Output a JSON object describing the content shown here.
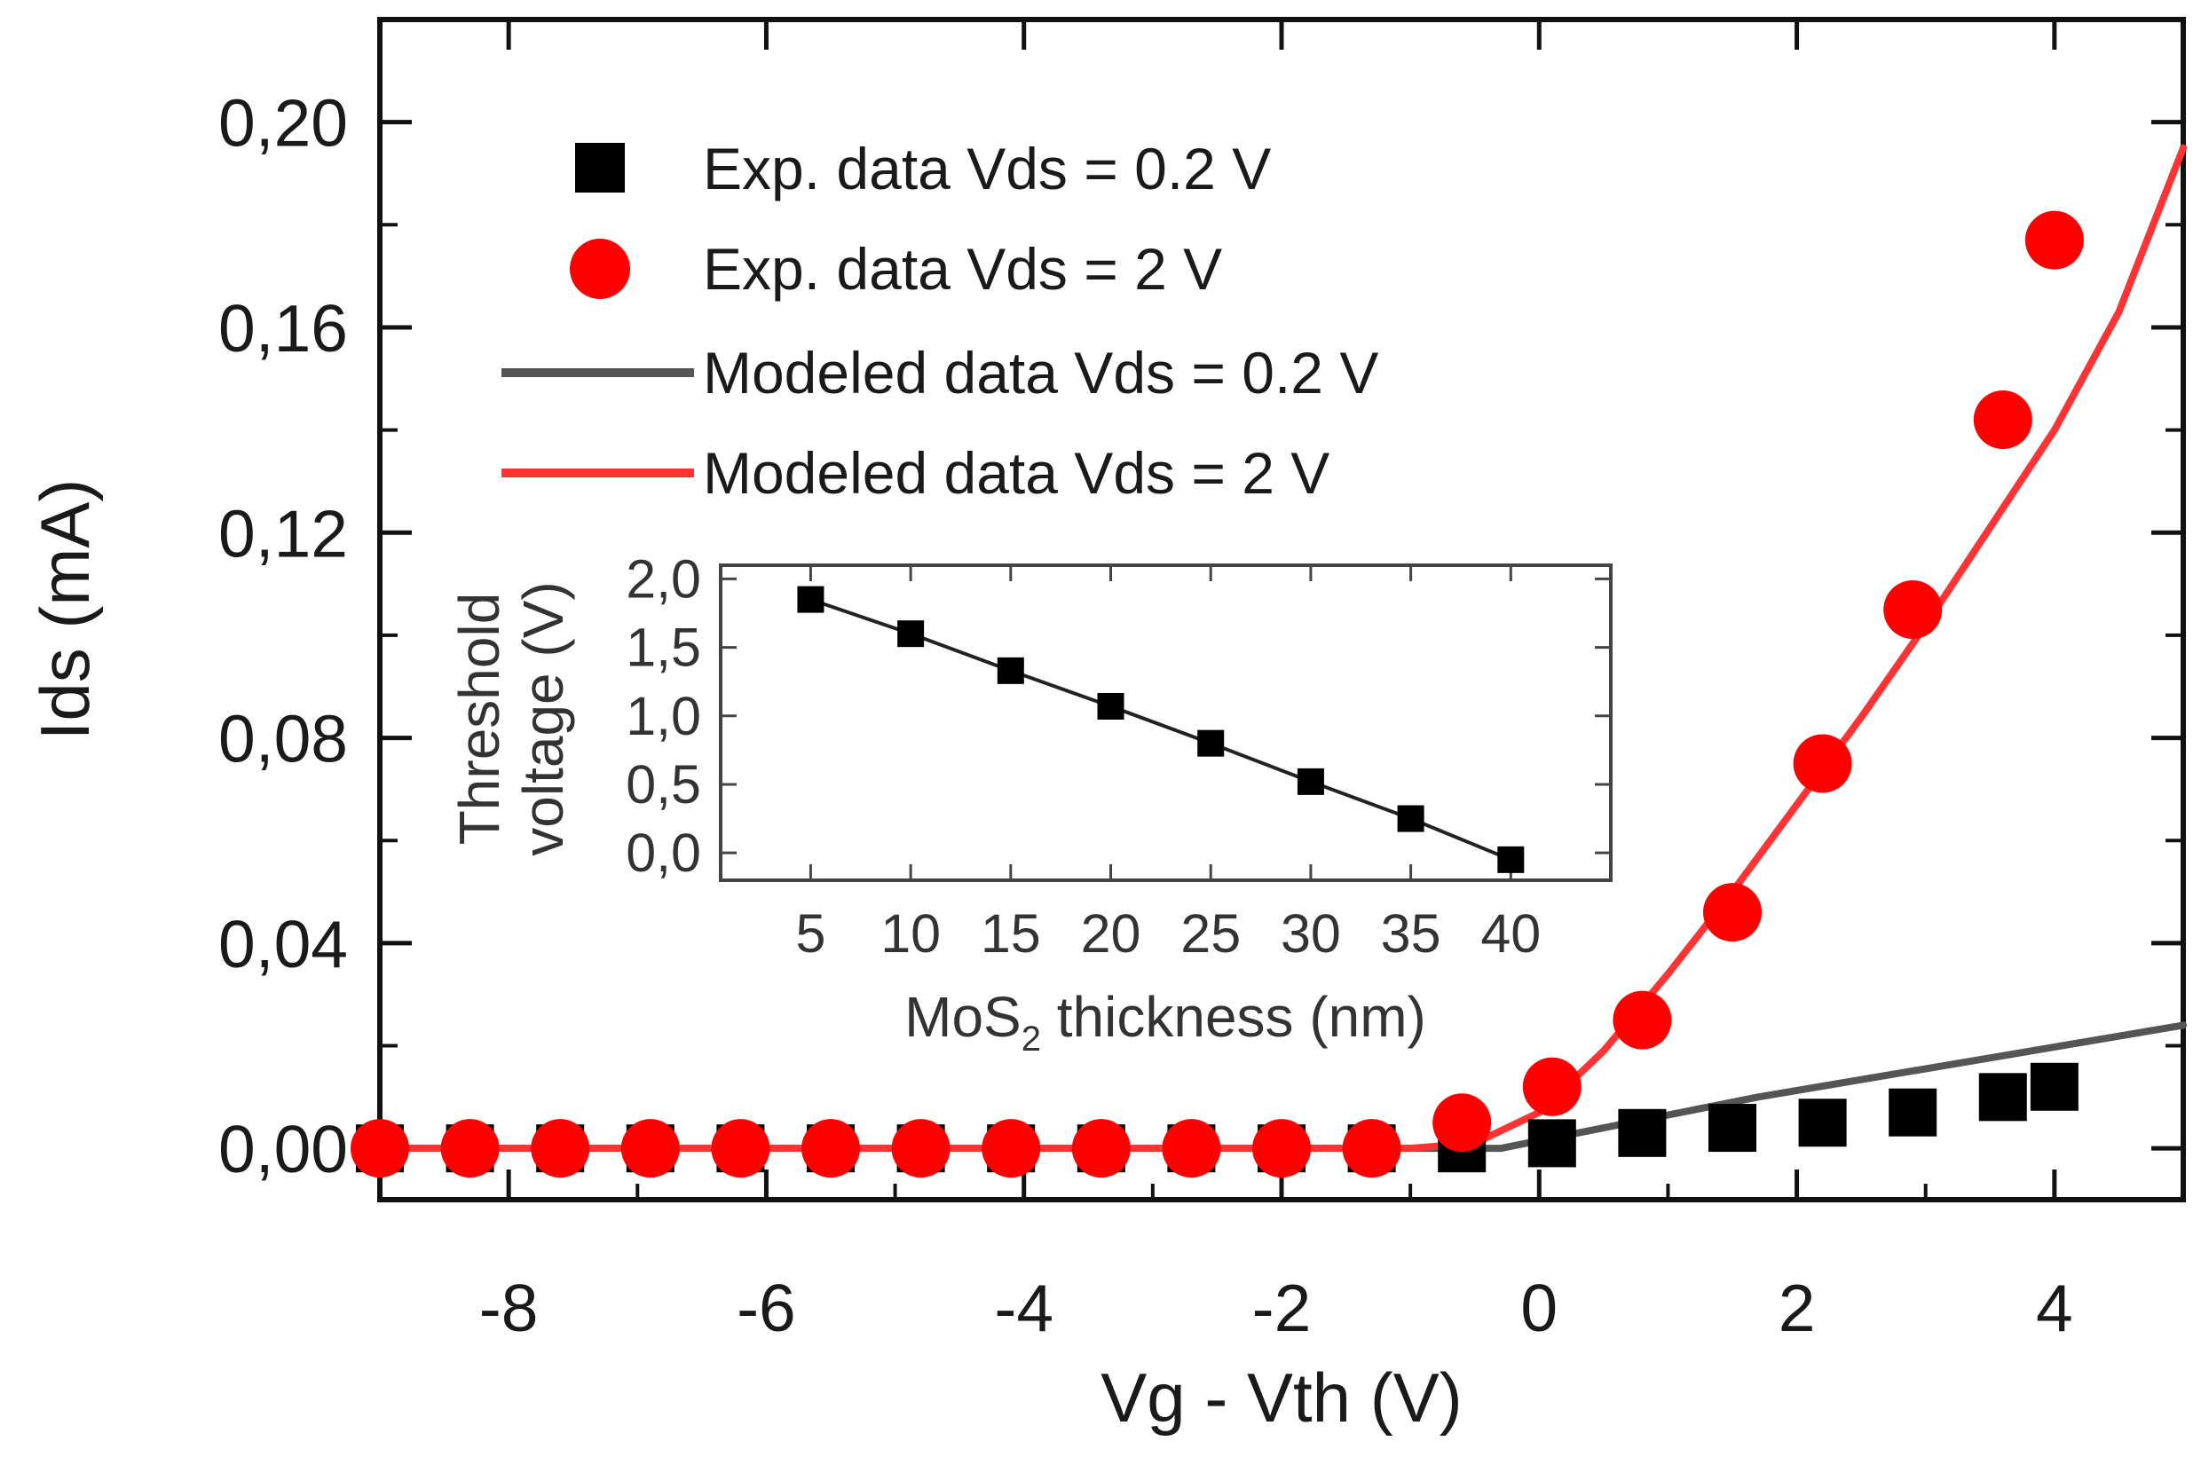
{
  "chart_data": [
    {
      "type": "scatter",
      "title": "",
      "xlabel": "Vg - Vth (V)",
      "ylabel": "Ids (mA)",
      "xlim": [
        -9.0,
        5.0
      ],
      "ylim": [
        -0.01,
        0.22
      ],
      "x_ticks": [
        -8,
        -6,
        -4,
        -2,
        0,
        2,
        4
      ],
      "x_tick_labels": [
        "-8",
        "-6",
        "-4",
        "-2",
        "0",
        "2",
        "4"
      ],
      "y_ticks": [
        0.0,
        0.04,
        0.08,
        0.12,
        0.16,
        0.2
      ],
      "y_tick_labels": [
        "0,00",
        "0,04",
        "0,08",
        "0,12",
        "0,16",
        "0,20"
      ],
      "grid": false,
      "legend_position": "top-left",
      "legend": [
        "Exp. data Vds = 0.2 V",
        "Exp. data Vds = 2 V",
        "Modeled data Vds = 0.2 V",
        "Modeled data Vds = 2 V"
      ],
      "series": [
        {
          "name": "Exp. data Vds = 0.2 V",
          "kind": "scatter",
          "marker": "square",
          "color": "#000000",
          "x": [
            -9.0,
            -8.3,
            -7.6,
            -6.9,
            -6.2,
            -5.5,
            -4.8,
            -4.1,
            -3.4,
            -2.7,
            -2.0,
            -1.3,
            -0.6,
            0.1,
            0.8,
            1.5,
            2.2,
            2.9,
            3.6,
            4.0
          ],
          "y": [
            0.0,
            0.0,
            0.0,
            0.0,
            0.0,
            0.0,
            0.0,
            0.0,
            0.0,
            0.0,
            0.0,
            0.0,
            0.0,
            0.001,
            0.003,
            0.004,
            0.005,
            0.007,
            0.01,
            0.012
          ]
        },
        {
          "name": "Exp. data Vds = 2 V",
          "kind": "scatter",
          "marker": "circle",
          "color": "#ff0000",
          "x": [
            -9.0,
            -8.3,
            -7.6,
            -6.9,
            -6.2,
            -5.5,
            -4.8,
            -4.1,
            -3.4,
            -2.7,
            -2.0,
            -1.3,
            -0.6,
            0.1,
            0.8,
            1.5,
            2.2,
            2.9,
            3.6,
            4.0
          ],
          "y": [
            0.0,
            0.0,
            0.0,
            0.0,
            0.0,
            0.0,
            0.0,
            0.0,
            0.0,
            0.0,
            0.0,
            0.0,
            0.005,
            0.012,
            0.025,
            0.046,
            0.075,
            0.105,
            0.142,
            0.177
          ]
        },
        {
          "name": "Modeled data Vds = 0.2 V",
          "kind": "line",
          "color": "#555555",
          "x": [
            -9.0,
            -0.3,
            0.5,
            1.7,
            5.0
          ],
          "y": [
            0.0,
            0.0,
            0.004,
            0.01,
            0.024
          ]
        },
        {
          "name": "Modeled data Vds = 2 V",
          "kind": "line",
          "color": "#ff3333",
          "x": [
            -9.0,
            -1.0,
            -0.5,
            0.0,
            0.5,
            1.0,
            1.5,
            2.0,
            2.5,
            3.0,
            3.5,
            4.0,
            4.5,
            5.0
          ],
          "y": [
            0.0,
            0.0,
            0.001,
            0.007,
            0.019,
            0.034,
            0.05,
            0.067,
            0.084,
            0.102,
            0.121,
            0.14,
            0.163,
            0.195
          ]
        }
      ]
    },
    {
      "type": "line",
      "title": "",
      "xlabel": "MoS2 thickness (nm)",
      "xlabel_main": "MoS",
      "xlabel_sub": "2",
      "xlabel_rest": " thickness (nm)",
      "ylabel_lines": [
        "Threshold",
        "voltage (V)"
      ],
      "xlim": [
        0.5,
        45.0
      ],
      "ylim": [
        -0.2,
        2.1
      ],
      "x_ticks": [
        5,
        10,
        15,
        20,
        25,
        30,
        35,
        40
      ],
      "x_tick_labels": [
        "5",
        "10",
        "15",
        "20",
        "25",
        "30",
        "35",
        "40"
      ],
      "y_ticks": [
        0.0,
        0.5,
        1.0,
        1.5,
        2.0
      ],
      "y_tick_labels": [
        "0,0",
        "0,5",
        "1,0",
        "1,5",
        "2,0"
      ],
      "grid": false,
      "legend_position": "none",
      "series": [
        {
          "name": "Threshold voltage",
          "marker": "square",
          "color": "#000000",
          "x": [
            5,
            10,
            15,
            20,
            25,
            30,
            35,
            40
          ],
          "y": [
            1.85,
            1.6,
            1.33,
            1.07,
            0.8,
            0.52,
            0.25,
            -0.05
          ]
        }
      ]
    }
  ]
}
